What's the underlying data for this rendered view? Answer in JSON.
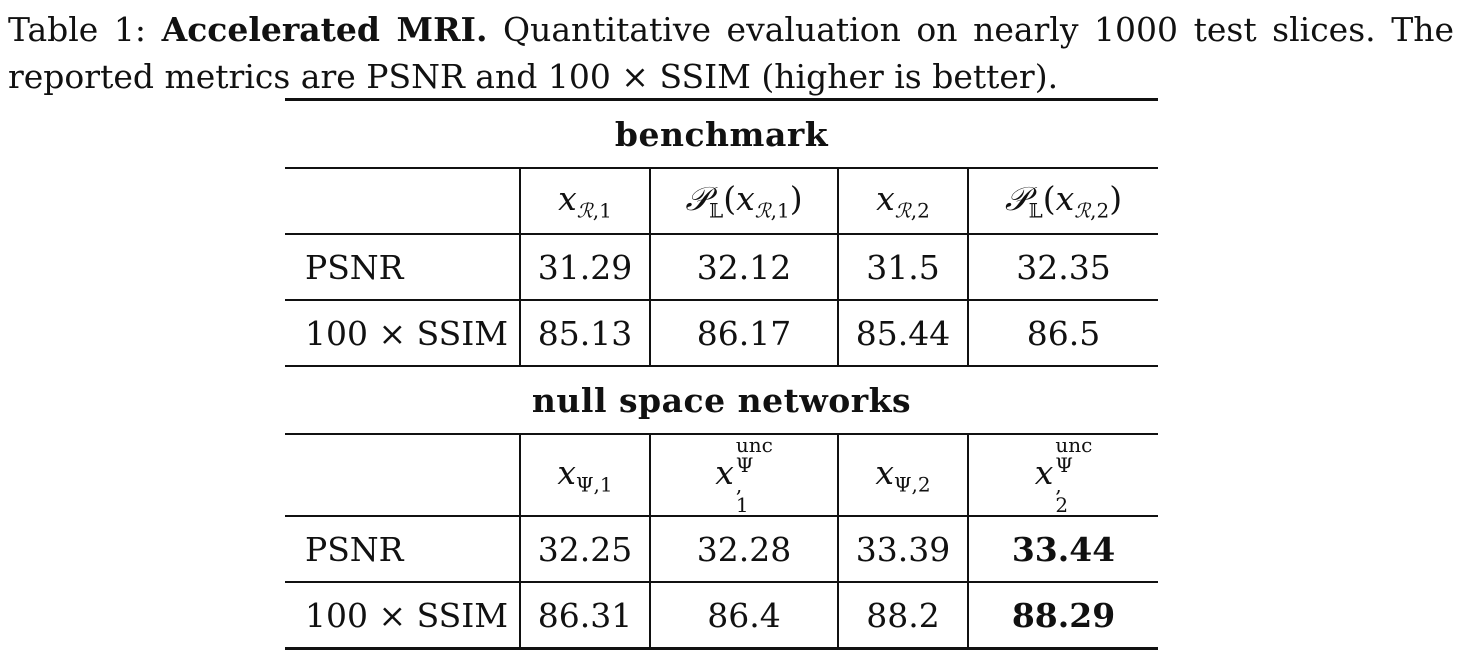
{
  "caption": {
    "table_label": "Table 1:",
    "bold_title": "Accelerated MRI.",
    "text": "Quantitative evaluation on nearly 1000 test slices. The reported metrics are PSNR and 100 × SSIM (higher is better)."
  },
  "sections": [
    {
      "title": "benchmark",
      "columns": [
        "x_R,1",
        "P_L(x_R,1)",
        "x_R,2",
        "P_L(x_R,2)"
      ],
      "rows": [
        {
          "label": "PSNR",
          "values": [
            "31.29",
            "32.12",
            "31.5",
            "32.35"
          ]
        },
        {
          "label": "100 × SSIM",
          "values": [
            "85.13",
            "86.17",
            "85.44",
            "86.5"
          ]
        }
      ]
    },
    {
      "title": "null space networks",
      "columns": [
        "x_Ψ,1",
        "x_Ψ,1^unc",
        "x_Ψ,2",
        "x_Ψ,2^unc"
      ],
      "rows": [
        {
          "label": "PSNR",
          "values": [
            "32.25",
            "32.28",
            "33.39",
            "33.44"
          ]
        },
        {
          "label": "100 × SSIM",
          "values": [
            "86.31",
            "86.4",
            "88.2",
            "88.29"
          ]
        }
      ]
    }
  ],
  "math": {
    "x": "x",
    "R": "ℛ",
    "P": "𝒫",
    "L": "𝕃",
    "Psi": "Ψ",
    "one": "1",
    "two": "2",
    "unc": "unc"
  }
}
